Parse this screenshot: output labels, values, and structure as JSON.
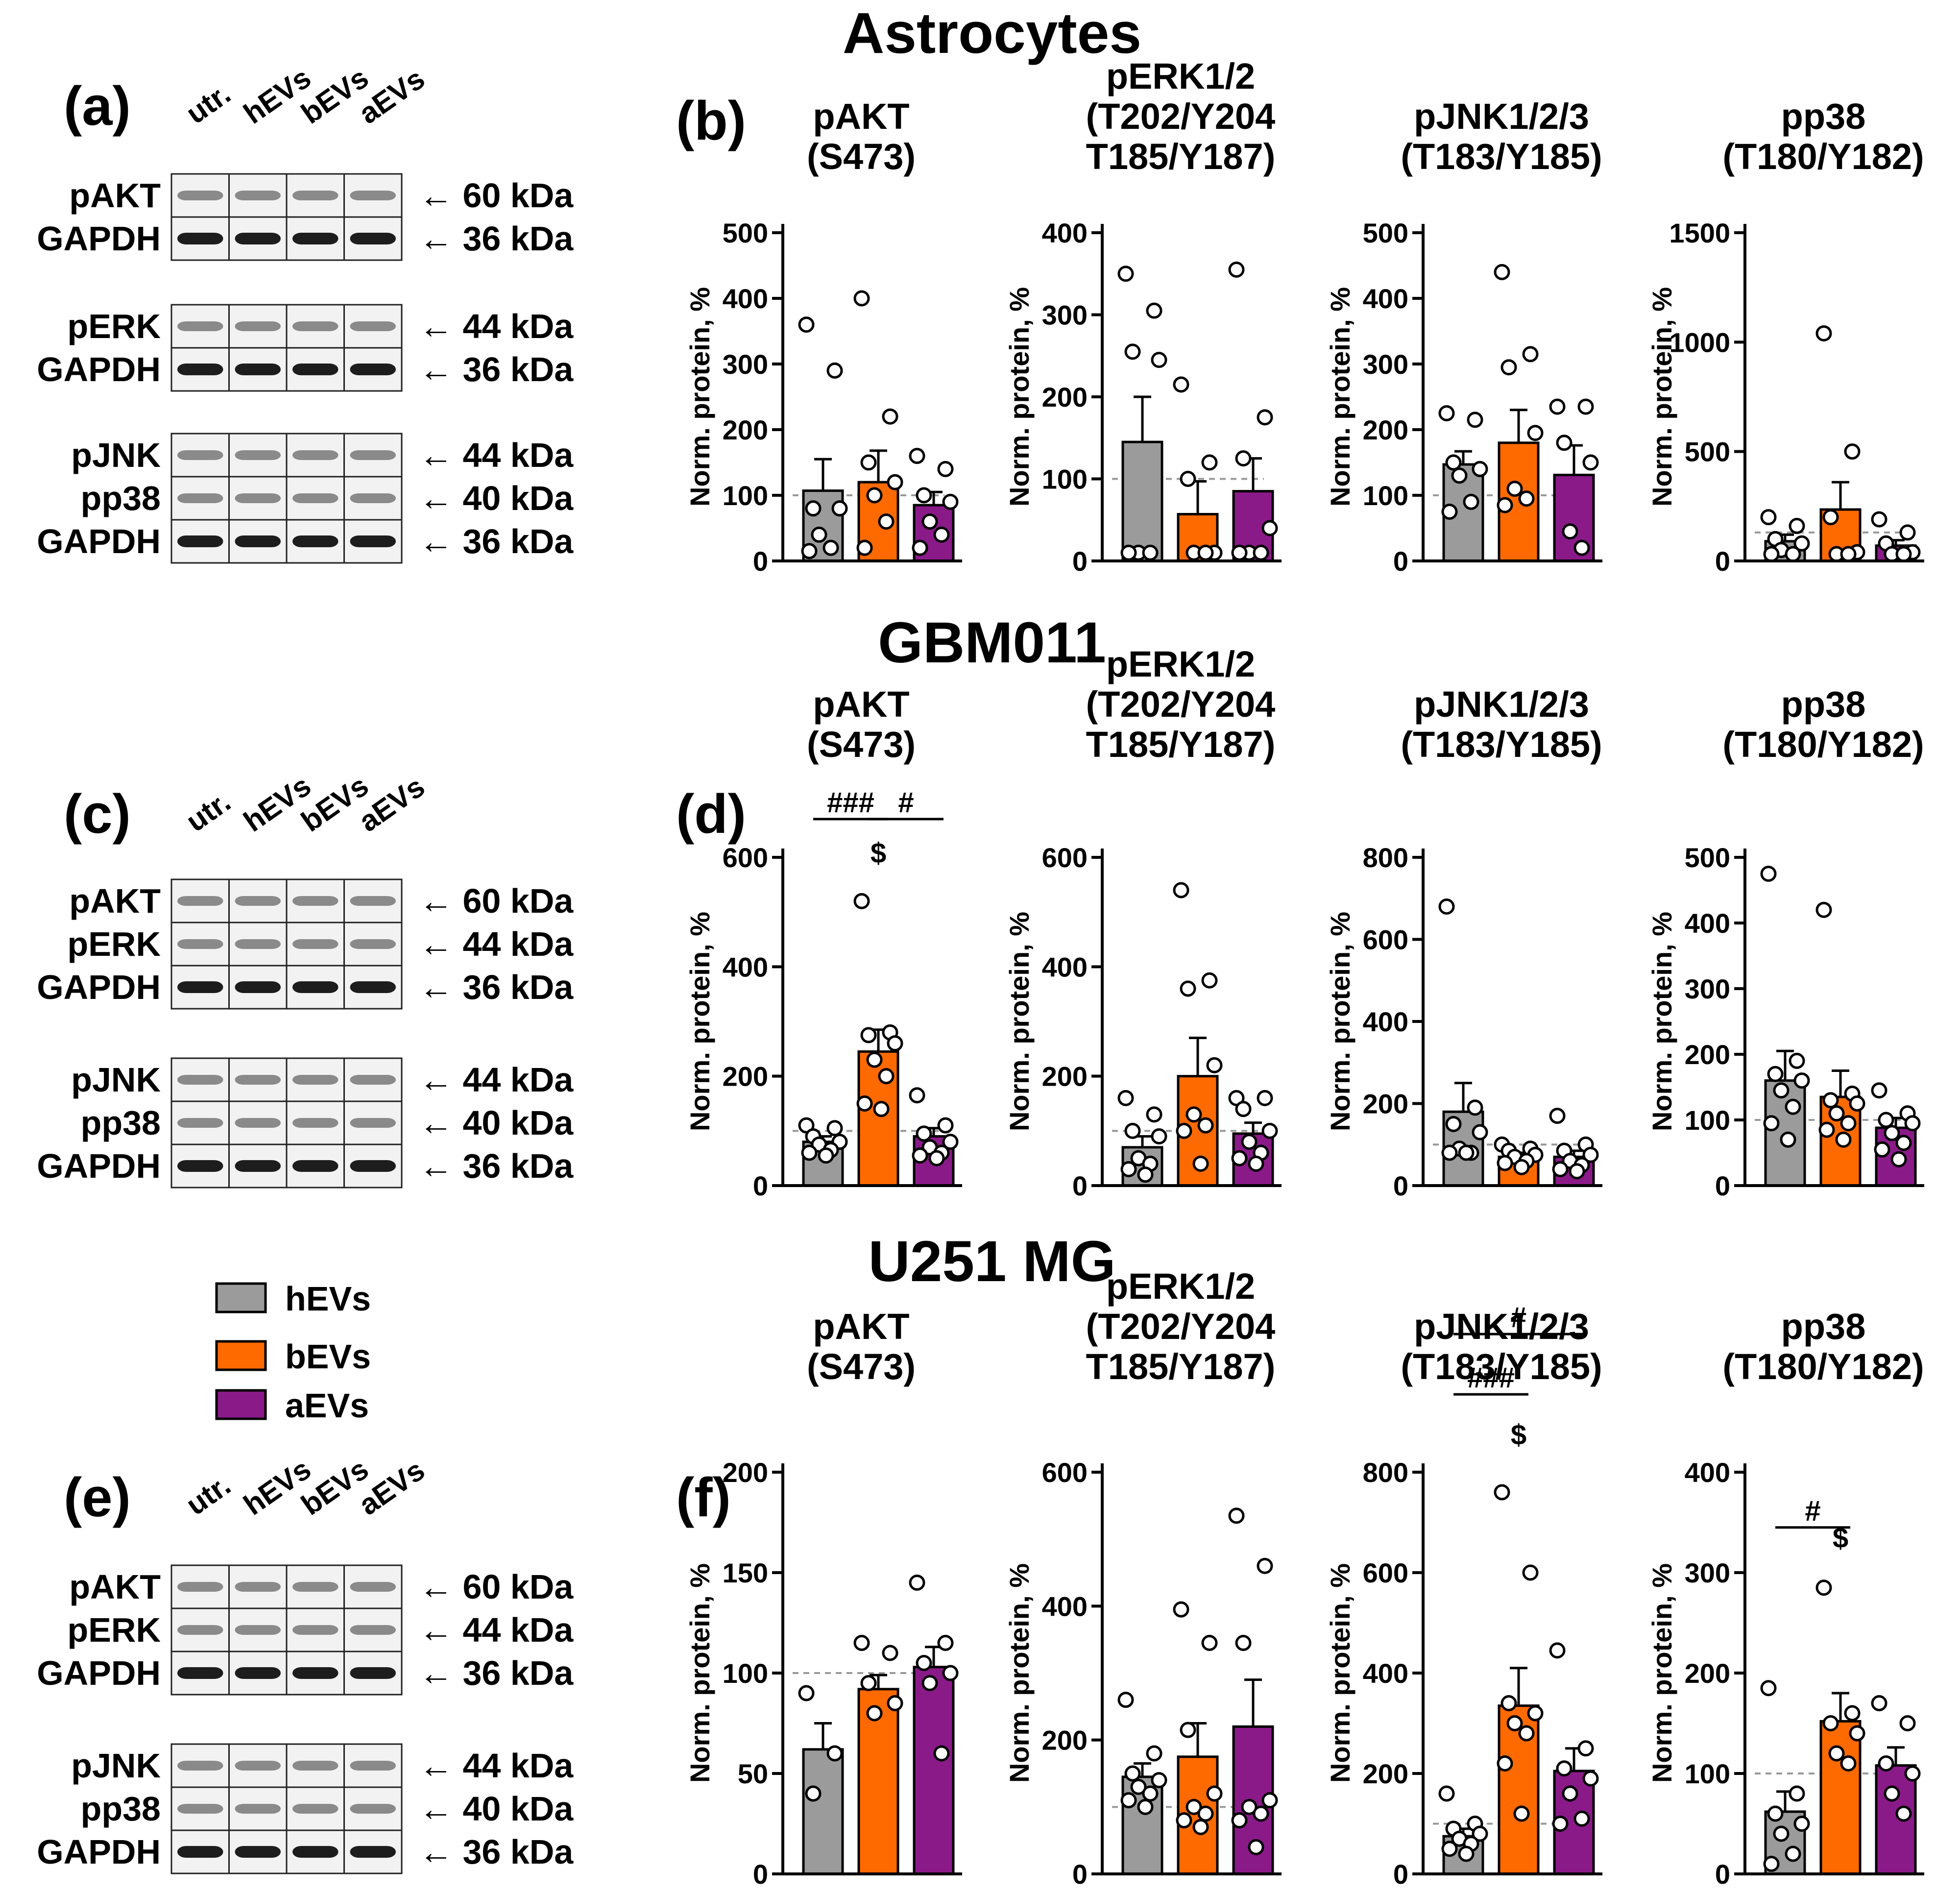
{
  "colors": {
    "hEVs": "#9b9b9b",
    "bEVs": "#ff6a00",
    "aEVs": "#8b1a89",
    "reference": "#999999"
  },
  "legend": [
    {
      "key": "hEVs",
      "label": "hEVs"
    },
    {
      "key": "bEVs",
      "label": "bEVs"
    },
    {
      "key": "aEVs",
      "label": "aEVs"
    }
  ],
  "sections": [
    {
      "title": "Astrocytes",
      "blot": {
        "letter": "(a)",
        "lanes": [
          "utr.",
          "hEVs",
          "bEVs",
          "aEVs"
        ],
        "groups": [
          [
            {
              "label": "pAKT",
              "kda": "← 60 kDa"
            },
            {
              "label": "GAPDH",
              "kda": "← 36 kDa"
            }
          ],
          [
            {
              "label": "pERK",
              "kda": "← 44 kDa"
            },
            {
              "label": "GAPDH",
              "kda": "← 36 kDa"
            }
          ],
          [
            {
              "label": "pJNK",
              "kda": "← 44 kDa"
            },
            {
              "label": "pp38",
              "kda": "← 40 kDa"
            },
            {
              "label": "GAPDH",
              "kda": "← 36 kDa"
            }
          ]
        ]
      },
      "charts_letter": "(b)"
    },
    {
      "title": "GBM011",
      "blot": {
        "letter": "(c)",
        "lanes": [
          "utr.",
          "hEVs",
          "bEVs",
          "aEVs"
        ],
        "groups": [
          [
            {
              "label": "pAKT",
              "kda": "← 60 kDa"
            },
            {
              "label": "pERK",
              "kda": "← 44 kDa"
            },
            {
              "label": "GAPDH",
              "kda": "← 36 kDa"
            }
          ],
          [
            {
              "label": "pJNK",
              "kda": "← 44 kDa"
            },
            {
              "label": "pp38",
              "kda": "← 40 kDa"
            },
            {
              "label": "GAPDH",
              "kda": "← 36 kDa"
            }
          ]
        ]
      },
      "charts_letter": "(d)"
    },
    {
      "title": "U251 MG",
      "blot": {
        "letter": "(e)",
        "lanes": [
          "utr.",
          "hEVs",
          "bEVs",
          "aEVs"
        ],
        "groups": [
          [
            {
              "label": "pAKT",
              "kda": "← 60 kDa"
            },
            {
              "label": "pERK",
              "kda": "← 44 kDa"
            },
            {
              "label": "GAPDH",
              "kda": "← 36 kDa"
            }
          ],
          [
            {
              "label": "pJNK",
              "kda": "← 44 kDa"
            },
            {
              "label": "pp38",
              "kda": "← 40 kDa"
            },
            {
              "label": "GAPDH",
              "kda": "← 36 kDa"
            }
          ]
        ]
      },
      "charts_letter": "(f)"
    }
  ],
  "chart_data": [
    {
      "type": "bar",
      "section": "Astrocytes",
      "title": [
        "pAKT",
        "(S473)"
      ],
      "ylabel": "Norm. protein, %",
      "ylim": [
        0,
        500
      ],
      "yticks": [
        0,
        100,
        200,
        300,
        400,
        500
      ],
      "reference": 100,
      "categories": [
        "hEVs",
        "bEVs",
        "aEVs"
      ],
      "means": [
        107,
        120,
        85
      ],
      "sem": [
        48,
        48,
        20
      ],
      "points": [
        [
          360,
          290,
          80,
          80,
          40,
          20,
          15
        ],
        [
          400,
          220,
          150,
          120,
          100,
          60,
          20
        ],
        [
          160,
          140,
          100,
          90,
          60,
          40,
          20
        ]
      ],
      "significance": []
    },
    {
      "type": "bar",
      "section": "Astrocytes",
      "title": [
        "pERK1/2",
        "(T202/Y204",
        "T185/Y187)"
      ],
      "ylabel": "Norm. protein, %",
      "ylim": [
        0,
        400
      ],
      "yticks": [
        0,
        100,
        200,
        300,
        400
      ],
      "reference": 100,
      "categories": [
        "hEVs",
        "bEVs",
        "aEVs"
      ],
      "means": [
        145,
        57,
        85
      ],
      "sem": [
        55,
        40,
        40
      ],
      "points": [
        [
          350,
          305,
          255,
          245,
          10,
          10,
          10
        ],
        [
          215,
          120,
          100,
          10,
          10,
          10
        ],
        [
          355,
          175,
          125,
          40,
          10,
          10,
          10
        ]
      ],
      "significance": []
    },
    {
      "type": "bar",
      "section": "Astrocytes",
      "title": [
        "pJNK1/2/3",
        "(T183/Y185)"
      ],
      "ylabel": "Norm. protein, %",
      "ylim": [
        0,
        500
      ],
      "yticks": [
        0,
        100,
        200,
        300,
        400,
        500
      ],
      "reference": 100,
      "categories": [
        "hEVs",
        "bEVs",
        "aEVs"
      ],
      "means": [
        147,
        180,
        131
      ],
      "sem": [
        20,
        50,
        45
      ],
      "points": [
        [
          225,
          215,
          150,
          140,
          130,
          90,
          75
        ],
        [
          440,
          315,
          295,
          195,
          110,
          95,
          85
        ],
        [
          235,
          235,
          180,
          150,
          45,
          20
        ]
      ],
      "significance": []
    },
    {
      "type": "bar",
      "section": "Astrocytes",
      "title": [
        "pp38",
        "(T180/Y182)"
      ],
      "ylabel": "Norm. protein, %",
      "ylim": [
        0,
        1500
      ],
      "yticks": [
        0,
        500,
        1000,
        1500
      ],
      "reference": 130,
      "categories": [
        "hEVs",
        "bEVs",
        "aEVs"
      ],
      "means": [
        90,
        235,
        70
      ],
      "sem": [
        30,
        125,
        25
      ],
      "points": [
        [
          200,
          160,
          100,
          80,
          50,
          20,
          15
        ],
        [
          1040,
          500,
          200,
          40,
          20,
          15
        ],
        [
          190,
          130,
          80,
          40,
          20,
          10
        ]
      ],
      "significance": []
    },
    {
      "type": "bar",
      "section": "GBM011",
      "title": [
        "pAKT",
        "(S473)"
      ],
      "ylabel": "Norm. protein, %",
      "ylim": [
        0,
        600
      ],
      "yticks": [
        0,
        200,
        400,
        600
      ],
      "reference": 100,
      "categories": [
        "hEVs",
        "bEVs",
        "aEVs"
      ],
      "means": [
        80,
        245,
        90
      ],
      "sem": [
        10,
        40,
        15
      ],
      "points": [
        [
          110,
          105,
          90,
          80,
          75,
          65,
          60,
          55
        ],
        [
          520,
          280,
          275,
          260,
          230,
          200,
          150,
          140
        ],
        [
          165,
          110,
          95,
          80,
          70,
          60,
          55,
          50
        ]
      ],
      "significance": [
        {
          "from": 0,
          "to": 1,
          "label": "###",
          "y": 670
        },
        {
          "from": 1,
          "to": 2,
          "label": "#",
          "y": 670
        },
        {
          "at": 1,
          "label": "$",
          "y": 590
        }
      ]
    },
    {
      "type": "bar",
      "section": "GBM011",
      "title": [
        "pERK1/2",
        "(T202/Y204",
        "T185/Y187)"
      ],
      "ylabel": "Norm. protein, %",
      "ylim": [
        0,
        600
      ],
      "yticks": [
        0,
        200,
        400,
        600
      ],
      "reference": 100,
      "categories": [
        "hEVs",
        "bEVs",
        "aEVs"
      ],
      "means": [
        70,
        200,
        95
      ],
      "sem": [
        20,
        70,
        20
      ],
      "points": [
        [
          160,
          130,
          100,
          90,
          50,
          40,
          30,
          20
        ],
        [
          540,
          375,
          360,
          220,
          130,
          110,
          100,
          40
        ],
        [
          160,
          160,
          140,
          100,
          80,
          60,
          50,
          40
        ]
      ],
      "significance": []
    },
    {
      "type": "bar",
      "section": "GBM011",
      "title": [
        "pJNK1/2/3",
        "(T183/Y185)"
      ],
      "ylabel": "Norm. protein, %",
      "ylim": [
        0,
        800
      ],
      "yticks": [
        0,
        200,
        400,
        600,
        800
      ],
      "reference": 100,
      "categories": [
        "hEVs",
        "bEVs",
        "aEVs"
      ],
      "means": [
        180,
        70,
        70
      ],
      "sem": [
        70,
        10,
        15
      ],
      "points": [
        [
          680,
          190,
          150,
          130,
          90,
          80,
          80,
          80
        ],
        [
          100,
          90,
          85,
          75,
          70,
          60,
          55,
          45
        ],
        [
          170,
          100,
          85,
          75,
          60,
          50,
          40,
          35
        ]
      ],
      "significance": []
    },
    {
      "type": "bar",
      "section": "GBM011",
      "title": [
        "pp38",
        "(T180/Y182)"
      ],
      "ylabel": "Norm. protein, %",
      "ylim": [
        0,
        500
      ],
      "yticks": [
        0,
        100,
        200,
        300,
        400,
        500
      ],
      "reference": 100,
      "categories": [
        "hEVs",
        "bEVs",
        "aEVs"
      ],
      "means": [
        160,
        135,
        88
      ],
      "sem": [
        45,
        40,
        15
      ],
      "points": [
        [
          475,
          190,
          170,
          160,
          145,
          120,
          95,
          70
        ],
        [
          420,
          140,
          130,
          125,
          110,
          95,
          85,
          70
        ],
        [
          145,
          110,
          100,
          95,
          80,
          65,
          55,
          40
        ]
      ],
      "significance": []
    },
    {
      "type": "bar",
      "section": "U251 MG",
      "title": [
        "pAKT",
        "(S473)"
      ],
      "ylabel": "Norm. protein, %",
      "ylim": [
        0,
        200
      ],
      "yticks": [
        0,
        50,
        100,
        150,
        200
      ],
      "reference": 100,
      "categories": [
        "hEVs",
        "bEVs",
        "aEVs"
      ],
      "means": [
        62,
        92,
        103
      ],
      "sem": [
        13,
        7,
        10
      ],
      "points": [
        [
          90,
          60,
          40
        ],
        [
          115,
          110,
          95,
          85,
          80
        ],
        [
          145,
          115,
          105,
          100,
          95,
          60
        ]
      ],
      "significance": []
    },
    {
      "type": "bar",
      "section": "U251 MG",
      "title": [
        "pERK1/2",
        "(T202/Y204",
        "T185/Y187)"
      ],
      "ylabel": "Norm. protein, %",
      "ylim": [
        0,
        600
      ],
      "yticks": [
        0,
        200,
        400,
        600
      ],
      "reference": 100,
      "categories": [
        "hEVs",
        "bEVs",
        "aEVs"
      ],
      "means": [
        145,
        175,
        220
      ],
      "sem": [
        20,
        50,
        70
      ],
      "points": [
        [
          260,
          180,
          150,
          140,
          130,
          120,
          110,
          100
        ],
        [
          395,
          345,
          215,
          120,
          100,
          90,
          80,
          70
        ],
        [
          535,
          460,
          345,
          110,
          100,
          90,
          80,
          40
        ]
      ],
      "significance": []
    },
    {
      "type": "bar",
      "section": "U251 MG",
      "title": [
        "pJNK1/2/3",
        "(T183/Y185)"
      ],
      "ylabel": "Norm. protein, %",
      "ylim": [
        0,
        800
      ],
      "yticks": [
        0,
        200,
        400,
        600,
        800
      ],
      "reference": 100,
      "categories": [
        "hEVs",
        "bEVs",
        "aEVs"
      ],
      "means": [
        75,
        335,
        205
      ],
      "sem": [
        15,
        75,
        45
      ],
      "points": [
        [
          160,
          100,
          90,
          80,
          70,
          60,
          50,
          40
        ],
        [
          760,
          600,
          340,
          320,
          300,
          280,
          220,
          120
        ],
        [
          445,
          250,
          210,
          190,
          160,
          110,
          100
        ]
      ],
      "significance": [
        {
          "from": 0,
          "to": 2,
          "label": "#",
          "y": 1075
        },
        {
          "from": 0,
          "to": 1,
          "label": "###",
          "y": 955
        },
        {
          "at": 1,
          "label": "$",
          "y": 855
        }
      ]
    },
    {
      "type": "bar",
      "section": "U251 MG",
      "title": [
        "pp38",
        "(T180/Y182)"
      ],
      "ylabel": "Norm. protein, %",
      "ylim": [
        0,
        400
      ],
      "yticks": [
        0,
        100,
        200,
        300,
        400
      ],
      "reference": 100,
      "categories": [
        "hEVs",
        "bEVs",
        "aEVs"
      ],
      "means": [
        62,
        152,
        108
      ],
      "sem": [
        20,
        28,
        18
      ],
      "points": [
        [
          185,
          80,
          60,
          50,
          40,
          20,
          10
        ],
        [
          285,
          160,
          150,
          140,
          120,
          110
        ],
        [
          170,
          150,
          110,
          100,
          80,
          60
        ]
      ],
      "significance": [
        {
          "from": 0,
          "to": 1,
          "label": "#",
          "y": 345
        },
        {
          "at": 1,
          "label": "$",
          "y": 325
        }
      ]
    }
  ]
}
